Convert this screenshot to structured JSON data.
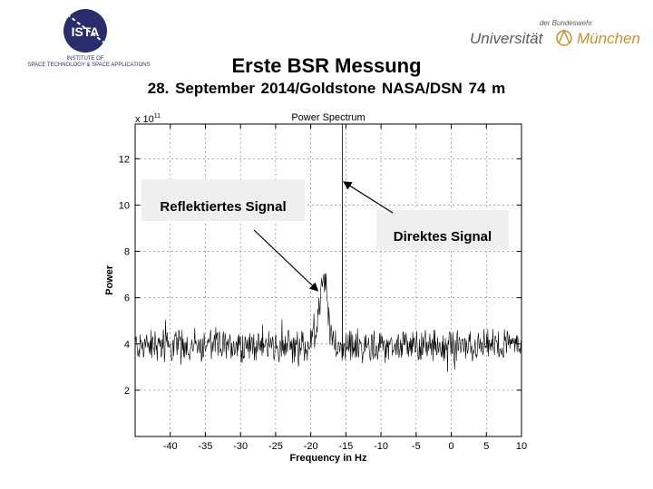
{
  "header": {
    "institute_logo_text": "ISTA",
    "institute_name_line1": "INSTITUTE OF",
    "institute_name_line2": "SPACE TECHNOLOGY & SPACE APPLICATIONS",
    "university_small": "der Bundeswehr",
    "university_left": "Universität",
    "university_right": "München",
    "colors": {
      "ista_navy": "#2a2d6b",
      "uni_gray": "#5a5a5a",
      "uni_gold": "#c8902a"
    }
  },
  "slide": {
    "title": "Erste BSR Messung",
    "subtitle": "28. September 2014/Goldstone NASA/DSN 74 m"
  },
  "chart_data": {
    "type": "line",
    "title": "Power Spectrum",
    "xlabel": "Frequency in Hz",
    "ylabel": "Power",
    "y_multiplier_label": "x 10",
    "y_multiplier_exponent": "11",
    "xlim": [
      -45,
      10
    ],
    "ylim": [
      0,
      13.5
    ],
    "x_ticks": [
      -40,
      -35,
      -30,
      -25,
      -20,
      -15,
      -10,
      -5,
      0,
      5,
      10
    ],
    "y_ticks": [
      2,
      4,
      6,
      8,
      10,
      12
    ],
    "grid": true,
    "series": [
      {
        "noise_baseline": 3.9,
        "noise_range": [
          2.2,
          5.2
        ],
        "reflected_peak": {
          "x": -18.2,
          "y": 7.9
        },
        "direct_peak": {
          "x": -15.5,
          "y": 13.5
        }
      }
    ],
    "annotations": [
      {
        "text": "Reflektiertes Signal",
        "points_to": {
          "x": -19,
          "y": 6.3
        }
      },
      {
        "text": "Direktes Signal",
        "points_to": {
          "x": -15.3,
          "y": 11.0
        }
      }
    ]
  }
}
